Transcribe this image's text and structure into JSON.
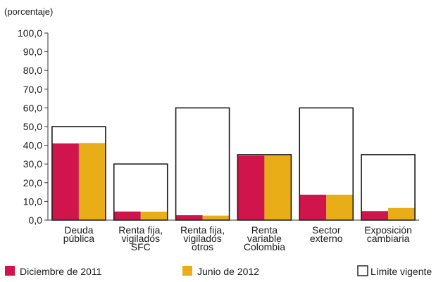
{
  "chart_data": {
    "type": "bar",
    "unit_label": "(porcentaje)",
    "categories": [
      [
        "Deuda",
        "pública"
      ],
      [
        "Renta fija,",
        "vigilados",
        "SFC"
      ],
      [
        "Renta fija,",
        "vigilados",
        "otros"
      ],
      [
        "Renta",
        "variable",
        "Colombia"
      ],
      [
        "Sector",
        "externo"
      ],
      [
        "Exposición",
        "cambiaria"
      ]
    ],
    "series": [
      {
        "name": "Diciembre de 2011",
        "color": "#d0144c",
        "values": [
          41.0,
          4.6,
          2.6,
          34.5,
          13.6,
          4.8
        ]
      },
      {
        "name": "Junio de 2012",
        "color": "#e8ad17",
        "values": [
          41.2,
          4.5,
          2.4,
          34.6,
          13.6,
          6.5
        ]
      }
    ],
    "limit": {
      "name": "Límite vigente",
      "values": [
        50.0,
        30.0,
        60.0,
        35.0,
        60.0,
        35.0
      ]
    },
    "ylim": [
      0,
      100
    ],
    "yticks": [
      "0,0",
      "10,0",
      "20,0",
      "30,0",
      "40,0",
      "50,0",
      "60,0",
      "70,0",
      "80,0",
      "90,0",
      "100,0"
    ],
    "legend_position": "bottom",
    "grid": false
  }
}
